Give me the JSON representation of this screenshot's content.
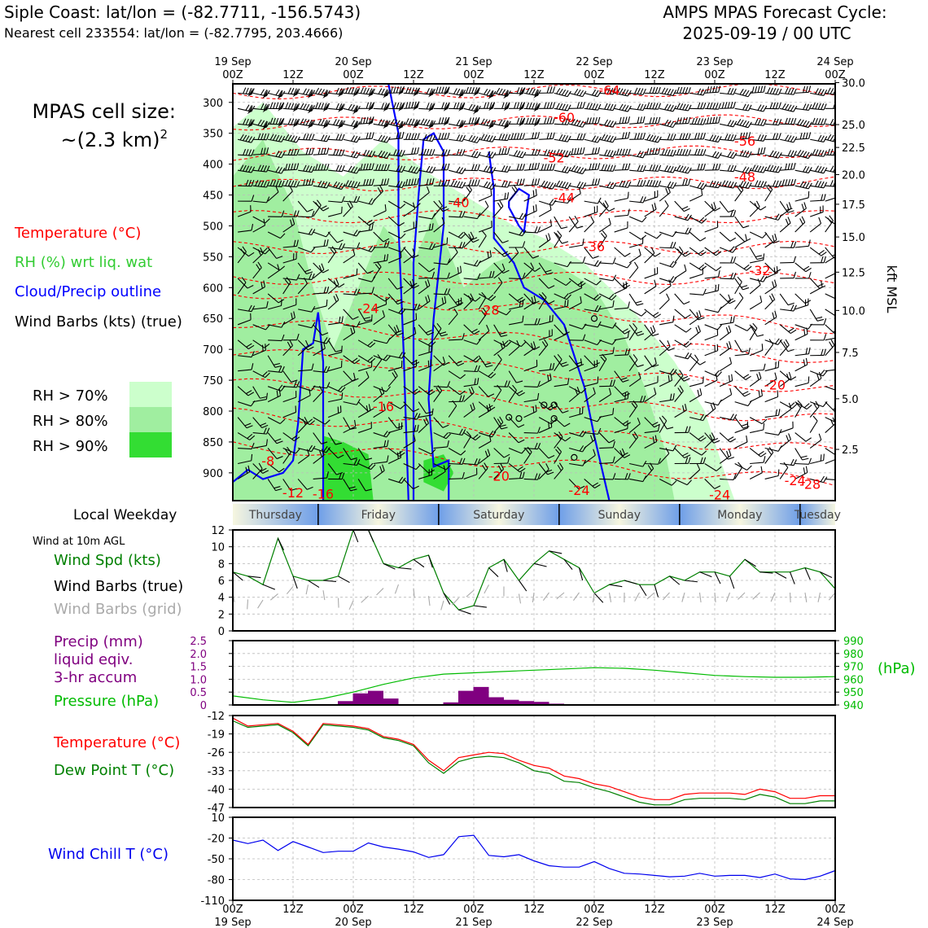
{
  "header": {
    "location_line": "Siple Coast: lat/lon = (-82.7711, -156.5743)",
    "cell_line": "Nearest cell 233554: lat/lon = (-82.7795, 203.4666)",
    "cycle_line1": "AMPS MPAS Forecast Cycle:",
    "cycle_line2": "2025-09-19 / 00 UTC"
  },
  "side": {
    "cell_size_line1": "MPAS cell size:",
    "cell_size_line2": "~(2.3 km)",
    "cell_size_sup": "2",
    "legend_temp": "Temperature (°C)",
    "legend_rh": "RH (%) wrt liq. wat",
    "legend_cloud": "Cloud/Precip outline",
    "legend_wind": "Wind Barbs (kts) (true)",
    "rh70": "RH > 70%",
    "rh80": "RH > 80%",
    "rh90": "RH > 90%",
    "weekday_label": "Local Weekday",
    "wind10_title": "Wind at 10m AGL",
    "wind_spd": "Wind Spd (kts)",
    "wind_true": "Wind Barbs (true)",
    "wind_grid": "Wind Barbs (grid)",
    "precip1": "Precip (mm)",
    "precip2": "liquid eqiv.",
    "precip3": "3-hr accum",
    "pressure": "Pressure (hPa)",
    "pres_unit": "(hPa)",
    "temp": "Temperature (°C)",
    "dew": "Dew Point T (°C)",
    "windchill": "Wind Chill T (°C)",
    "kft": "kft MSL"
  },
  "colors": {
    "temp": "#ff0000",
    "rh": "#33cc33",
    "cloud": "#0000ff",
    "precip": "#800080",
    "pressure": "#00bb00",
    "dew": "#008000",
    "windchill": "#0000ee",
    "grid_barb": "#aaaaaa",
    "rh70": "#ccffcc",
    "rh80": "#a0eea0",
    "rh90": "#33dd33"
  },
  "chart_data": [
    {
      "type": "heatmap",
      "name": "cross-section",
      "time_ticks": [
        {
          "top": "19 Sep",
          "bottom": "00Z"
        },
        {
          "top": "",
          "bottom": "12Z"
        },
        {
          "top": "20 Sep",
          "bottom": "00Z"
        },
        {
          "top": "",
          "bottom": "12Z"
        },
        {
          "top": "21 Sep",
          "bottom": "00Z"
        },
        {
          "top": "",
          "bottom": "12Z"
        },
        {
          "top": "22 Sep",
          "bottom": "00Z"
        },
        {
          "top": "",
          "bottom": "12Z"
        },
        {
          "top": "23 Sep",
          "bottom": "00Z"
        },
        {
          "top": "",
          "bottom": "12Z"
        },
        {
          "top": "24 Sep",
          "bottom": "00Z"
        }
      ],
      "hours_range": [
        0,
        120
      ],
      "pressure_ticks": [
        "300",
        "350",
        "400",
        "450",
        "500",
        "550",
        "600",
        "650",
        "700",
        "750",
        "800",
        "850",
        "900"
      ],
      "pressure_range": [
        270,
        945
      ],
      "kft_ticks": [
        {
          "label": "30.0",
          "p": 268
        },
        {
          "label": "25.0",
          "p": 336
        },
        {
          "label": "22.5",
          "p": 373
        },
        {
          "label": "20.0",
          "p": 417
        },
        {
          "label": "17.5",
          "p": 465
        },
        {
          "label": "15.0",
          "p": 518
        },
        {
          "label": "12.5",
          "p": 575
        },
        {
          "label": "10.0",
          "p": 637
        },
        {
          "label": "7.5",
          "p": 705
        },
        {
          "label": "5.0",
          "p": 780
        },
        {
          "label": "2.5",
          "p": 862
        }
      ],
      "temp_labels": [
        {
          "label": "-64",
          "h": 75,
          "p": 288
        },
        {
          "label": "-60",
          "h": 66,
          "p": 332
        },
        {
          "label": "-56",
          "h": 102,
          "p": 370
        },
        {
          "label": "-52",
          "h": 64,
          "p": 397
        },
        {
          "label": "-48",
          "h": 102,
          "p": 428
        },
        {
          "label": "-44",
          "h": 66,
          "p": 462
        },
        {
          "label": "-40",
          "h": 45,
          "p": 470
        },
        {
          "label": "-36",
          "h": 72,
          "p": 541
        },
        {
          "label": "-32",
          "h": 105,
          "p": 580
        },
        {
          "label": "-28",
          "h": 51,
          "p": 644
        },
        {
          "label": "-24",
          "h": 27,
          "p": 641
        },
        {
          "label": "-20",
          "h": 108,
          "p": 765
        },
        {
          "label": "-20",
          "h": 53,
          "p": 913
        },
        {
          "label": "-16",
          "h": 30,
          "p": 800
        },
        {
          "label": "-24",
          "h": 69,
          "p": 936
        },
        {
          "label": "-24",
          "h": 97,
          "p": 943
        },
        {
          "label": "-24",
          "h": 112,
          "p": 920
        },
        {
          "label": "-28",
          "h": 115,
          "p": 926
        },
        {
          "label": "-8",
          "h": 7,
          "p": 888
        },
        {
          "label": "-12",
          "h": 12,
          "p": 940
        },
        {
          "label": "-16",
          "h": 18,
          "p": 942
        }
      ]
    },
    {
      "type": "line",
      "name": "wind-speed",
      "hours": [
        0,
        3,
        6,
        9,
        12,
        15,
        18,
        21,
        24,
        27,
        30,
        33,
        36,
        39,
        42,
        45,
        48,
        51,
        54,
        57,
        60,
        63,
        66,
        69,
        72,
        75,
        78,
        81,
        84,
        87,
        90,
        93,
        96,
        99,
        102,
        105,
        108,
        111,
        114,
        117,
        120
      ],
      "wind_speed_kts": [
        7,
        6.5,
        5.5,
        11,
        6.5,
        6,
        6,
        6.5,
        12,
        12,
        8,
        7.5,
        8.5,
        9,
        4.5,
        2.5,
        3,
        7.5,
        8.5,
        6,
        8,
        9.5,
        8.5,
        7.5,
        4.5,
        5.5,
        6,
        5.5,
        5.5,
        6.5,
        6,
        7,
        7,
        6.5,
        8.5,
        7,
        7,
        7,
        7.5,
        7,
        5
      ],
      "ylim": [
        0,
        12
      ],
      "yticks": [
        "0",
        "2",
        "4",
        "6",
        "8",
        "10",
        "12"
      ]
    },
    {
      "type": "bar",
      "name": "precip-pressure",
      "precip_hours": [
        21,
        24,
        27,
        30,
        33,
        42,
        45,
        48,
        51,
        54,
        57,
        60,
        63,
        66,
        69
      ],
      "precip_mm": [
        0.15,
        0.45,
        0.55,
        0.25,
        0.0,
        0.1,
        0.55,
        0.7,
        0.3,
        0.2,
        0.15,
        0.12,
        0.05,
        0.03,
        0.02
      ],
      "precip_ylim": [
        0,
        2.5
      ],
      "precip_yticks": [
        "0",
        "0.5",
        "1.0",
        "1.5",
        "2.0",
        "2.5"
      ],
      "pressure_hours": [
        0,
        6,
        12,
        18,
        24,
        30,
        36,
        42,
        48,
        54,
        60,
        66,
        72,
        78,
        84,
        90,
        96,
        102,
        108,
        114,
        120
      ],
      "pressure_hpa": [
        947,
        944,
        942,
        945,
        950,
        956,
        961,
        964,
        965,
        966,
        967,
        968,
        969,
        968.5,
        967,
        965,
        963,
        962,
        961.5,
        961.5,
        962
      ],
      "pressure_ylim": [
        940,
        990
      ],
      "pressure_yticks": [
        "940",
        "950",
        "960",
        "970",
        "980",
        "990"
      ]
    },
    {
      "type": "line",
      "name": "temperature",
      "hours": [
        0,
        3,
        6,
        9,
        12,
        15,
        18,
        21,
        24,
        27,
        30,
        33,
        36,
        39,
        42,
        45,
        48,
        51,
        54,
        57,
        60,
        63,
        66,
        69,
        72,
        75,
        78,
        81,
        84,
        87,
        90,
        93,
        96,
        99,
        102,
        105,
        108,
        111,
        114,
        117,
        120
      ],
      "temp_c": [
        -13,
        -16,
        -15.5,
        -15,
        -18,
        -23,
        -15,
        -15.5,
        -16,
        -17,
        -20,
        -21,
        -23,
        -29,
        -33,
        -28,
        -27,
        -26,
        -26.5,
        -29,
        -31,
        -32,
        -35,
        -36,
        -38,
        -39,
        -41,
        -43,
        -44,
        -44,
        -42,
        -41.5,
        -41.5,
        -41.5,
        -42,
        -40,
        -41,
        -43.5,
        -43.5,
        -42.5,
        -42.5
      ],
      "dew_c": [
        -14,
        -16.5,
        -16,
        -15.5,
        -18.5,
        -23.5,
        -15.5,
        -16,
        -16.5,
        -17.5,
        -20.5,
        -21.5,
        -23.5,
        -30,
        -34,
        -29.5,
        -28,
        -27.5,
        -28,
        -30,
        -33,
        -34,
        -37,
        -37.5,
        -39.5,
        -41,
        -43,
        -45,
        -46,
        -46,
        -44,
        -43.5,
        -43.5,
        -43.5,
        -44,
        -42,
        -43,
        -45.5,
        -45.5,
        -44.5,
        -44.5
      ],
      "ylim": [
        -47,
        -12
      ],
      "yticks": [
        "-47",
        "-40",
        "-33",
        "-26",
        "-19",
        "-12"
      ]
    },
    {
      "type": "line",
      "name": "wind-chill",
      "hours": [
        0,
        3,
        6,
        9,
        12,
        15,
        18,
        21,
        24,
        27,
        30,
        33,
        36,
        39,
        42,
        45,
        48,
        51,
        54,
        57,
        60,
        63,
        66,
        69,
        72,
        75,
        78,
        81,
        84,
        87,
        90,
        93,
        96,
        99,
        102,
        105,
        108,
        111,
        114,
        117,
        120
      ],
      "windchill_c": [
        -23,
        -28,
        -23,
        -38,
        -25,
        -33,
        -41,
        -39,
        -39,
        -27,
        -33,
        -36,
        -40,
        -48,
        -44,
        -18,
        -16,
        -45,
        -47,
        -44,
        -53,
        -60,
        -62,
        -62,
        -54,
        -64,
        -71,
        -72,
        -74,
        -76,
        -75,
        -71,
        -75,
        -74,
        -74,
        -77,
        -72,
        -79,
        -80,
        -75,
        -67
      ],
      "ylim": [
        -110,
        10
      ],
      "yticks": [
        "-110",
        "-80",
        "-50",
        "-20",
        "10"
      ]
    }
  ],
  "weekdays": [
    "Thursday",
    "Friday",
    "Saturday",
    "Sunday",
    "Monday",
    "Tuesday"
  ],
  "bottom_ticks": [
    {
      "top": "00Z",
      "bottom": "19 Sep"
    },
    {
      "top": "12Z",
      "bottom": ""
    },
    {
      "top": "00Z",
      "bottom": "20 Sep"
    },
    {
      "top": "12Z",
      "bottom": ""
    },
    {
      "top": "00Z",
      "bottom": "21 Sep"
    },
    {
      "top": "12Z",
      "bottom": ""
    },
    {
      "top": "00Z",
      "bottom": "22 Sep"
    },
    {
      "top": "12Z",
      "bottom": ""
    },
    {
      "top": "00Z",
      "bottom": "23 Sep"
    },
    {
      "top": "12Z",
      "bottom": ""
    },
    {
      "top": "00Z",
      "bottom": "24 Sep"
    }
  ]
}
